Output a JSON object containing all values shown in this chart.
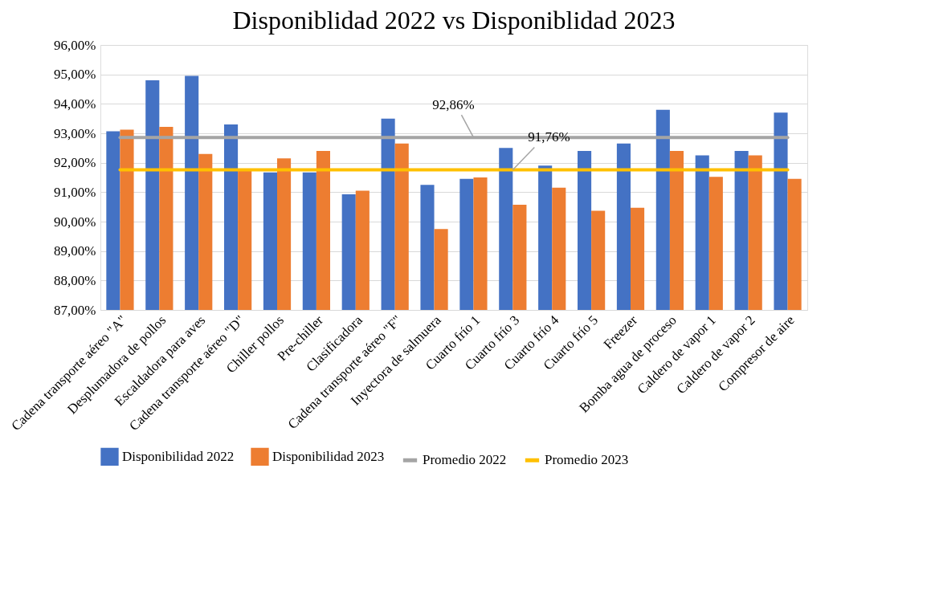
{
  "chart_data": {
    "type": "bar",
    "title": "Disponiblidad 2022 vs Disponiblidad 2023",
    "categories": [
      "Cadena transporte aéreo \"A\"",
      "Desplumadora de pollos",
      "Escaldadora para aves",
      "Cadena transporte aéreo \"D\"",
      "Chiller pollos",
      "Pre-chiller",
      "Clasificadora",
      "Cadena transporte aéreo \"F\"",
      "Inyectora de salmuera",
      "Cuarto frío 1",
      "Cuarto frío 3",
      "Cuarto frío 4",
      "Cuarto frío 5",
      "Freezer",
      "Bomba agua de proceso",
      "Caldero de vapor 1",
      "Caldero de vapor 2",
      "Compresor de aire"
    ],
    "series": [
      {
        "name": "Disponibilidad 2022",
        "color": "#4472c4",
        "values": [
          93.07,
          94.8,
          94.95,
          93.3,
          91.67,
          91.67,
          90.93,
          93.5,
          91.25,
          91.45,
          92.5,
          91.9,
          92.4,
          92.65,
          93.8,
          92.25,
          92.4,
          93.7
        ]
      },
      {
        "name": "Disponibilidad 2023",
        "color": "#ed7d31",
        "values": [
          93.12,
          93.22,
          92.3,
          91.78,
          92.15,
          92.4,
          91.05,
          92.65,
          89.75,
          91.5,
          90.57,
          91.15,
          90.37,
          90.47,
          92.4,
          91.52,
          92.25,
          91.45
        ]
      },
      {
        "name": "Promedio 2022",
        "type": "line",
        "color": "#a5a5a5",
        "values": [
          92.86,
          92.86,
          92.86,
          92.86,
          92.86,
          92.86,
          92.86,
          92.86,
          92.86,
          92.86,
          92.86,
          92.86,
          92.86,
          92.86,
          92.86,
          92.86,
          92.86,
          92.86
        ]
      },
      {
        "name": "Promedio 2023",
        "type": "line",
        "color": "#ffc000",
        "values": [
          91.76,
          91.76,
          91.76,
          91.76,
          91.76,
          91.76,
          91.76,
          91.76,
          91.76,
          91.76,
          91.76,
          91.76,
          91.76,
          91.76,
          91.76,
          91.76,
          91.76,
          91.76
        ]
      }
    ],
    "annotations": [
      {
        "text": "92,86%",
        "x": "Cuarto frío 1",
        "y": 92.86
      },
      {
        "text": "91,76%",
        "x": "Cuarto frío 3",
        "y": 91.76
      }
    ],
    "ylim": [
      87,
      96
    ],
    "yticks": [
      {
        "value": 87,
        "label": "87,00%"
      },
      {
        "value": 88,
        "label": "88,00%"
      },
      {
        "value": 89,
        "label": "89,00%"
      },
      {
        "value": 90,
        "label": "90,00%"
      },
      {
        "value": 91,
        "label": "91,00%"
      },
      {
        "value": 92,
        "label": "92,00%"
      },
      {
        "value": 93,
        "label": "93,00%"
      },
      {
        "value": 94,
        "label": "94,00%"
      },
      {
        "value": 95,
        "label": "95,00%"
      },
      {
        "value": 96,
        "label": "96,00%"
      }
    ],
    "grid": "y",
    "legend": "bottom"
  }
}
